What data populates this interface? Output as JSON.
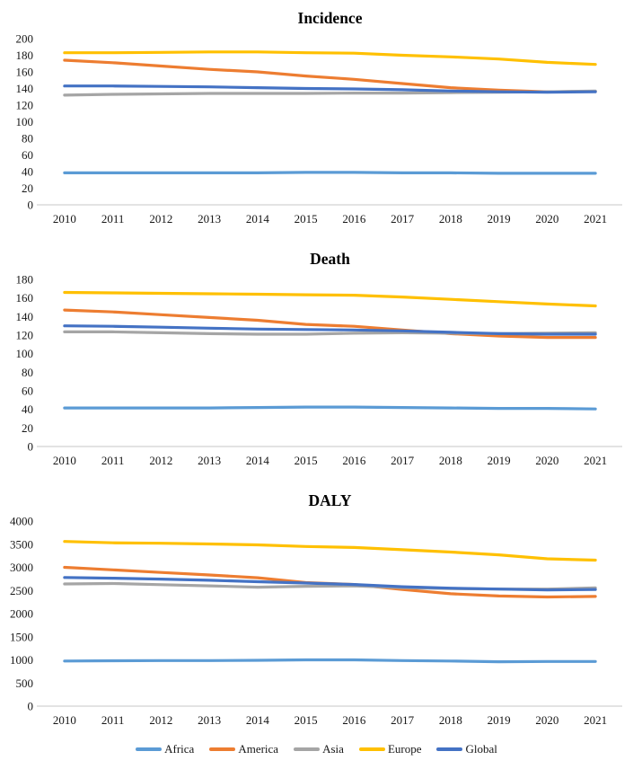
{
  "legend": {
    "items": [
      {
        "label": "Africa",
        "color": "#5B9BD5"
      },
      {
        "label": "America",
        "color": "#ED7D31"
      },
      {
        "label": "Asia",
        "color": "#A5A5A5"
      },
      {
        "label": "Europe",
        "color": "#FFC000"
      },
      {
        "label": "Global",
        "color": "#4472C4"
      }
    ]
  },
  "chart_data": [
    {
      "type": "line",
      "title": "Incidence",
      "x": [
        "2010",
        "2011",
        "2012",
        "2013",
        "2014",
        "2015",
        "2016",
        "2017",
        "2018",
        "2019",
        "2020",
        "2021"
      ],
      "ylim": [
        0,
        200
      ],
      "ytick_step": 20,
      "grid": false,
      "legend_position": "shared-bottom",
      "series": [
        {
          "name": "Africa",
          "color": "#5B9BD5",
          "values": [
            38.5,
            38.5,
            38.5,
            38.5,
            38.5,
            39,
            39,
            38.5,
            38.5,
            38,
            38,
            38
          ]
        },
        {
          "name": "America",
          "color": "#ED7D31",
          "values": [
            174,
            171,
            167,
            163,
            160,
            155,
            151,
            146,
            141,
            138,
            136,
            136.5
          ]
        },
        {
          "name": "Asia",
          "color": "#A5A5A5",
          "values": [
            132,
            133,
            133.5,
            134,
            134,
            134,
            134.5,
            134.5,
            135,
            135.5,
            136,
            137
          ]
        },
        {
          "name": "Europe",
          "color": "#FFC000",
          "values": [
            183,
            183,
            183.5,
            184,
            184,
            183,
            182.5,
            180,
            178,
            175.5,
            171.5,
            169
          ]
        },
        {
          "name": "Global",
          "color": "#4472C4",
          "values": [
            143,
            143,
            142.5,
            142,
            141,
            140,
            139.5,
            138.5,
            137,
            136,
            135.5,
            136
          ]
        }
      ]
    },
    {
      "type": "line",
      "title": "Death",
      "x": [
        "2010",
        "2011",
        "2012",
        "2013",
        "2014",
        "2015",
        "2016",
        "2017",
        "2018",
        "2019",
        "2020",
        "2021"
      ],
      "ylim": [
        0,
        180
      ],
      "ytick_step": 20,
      "grid": false,
      "legend_position": "shared-bottom",
      "series": [
        {
          "name": "Africa",
          "color": "#5B9BD5",
          "values": [
            41.5,
            41.5,
            41.5,
            41.5,
            42,
            42.5,
            42.5,
            42,
            41.5,
            41,
            41,
            40.5
          ]
        },
        {
          "name": "America",
          "color": "#ED7D31",
          "values": [
            147,
            145,
            142,
            139,
            136,
            131.5,
            129.5,
            125.5,
            121.5,
            119,
            117.5,
            117.5
          ]
        },
        {
          "name": "Asia",
          "color": "#A5A5A5",
          "values": [
            123.5,
            123.5,
            122.5,
            121.5,
            121,
            121,
            122,
            122.5,
            122,
            121.5,
            122,
            122.5
          ]
        },
        {
          "name": "Europe",
          "color": "#FFC000",
          "values": [
            166,
            165.5,
            165,
            164.5,
            164,
            163.5,
            163,
            161,
            158.5,
            156,
            153.5,
            151.5
          ]
        },
        {
          "name": "Global",
          "color": "#4472C4",
          "values": [
            130,
            129.5,
            128.5,
            127.5,
            126.5,
            126,
            125.5,
            124.5,
            123,
            121.5,
            121,
            121
          ]
        }
      ]
    },
    {
      "type": "line",
      "title": "DALY",
      "x": [
        "2010",
        "2011",
        "2012",
        "2013",
        "2014",
        "2015",
        "2016",
        "2017",
        "2018",
        "2019",
        "2020",
        "2021"
      ],
      "ylim": [
        0,
        4000
      ],
      "ytick_step": 500,
      "grid": false,
      "legend_position": "shared-bottom",
      "series": [
        {
          "name": "Africa",
          "color": "#5B9BD5",
          "values": [
            975,
            980,
            985,
            985,
            990,
            1000,
            1000,
            985,
            975,
            960,
            965,
            965
          ]
        },
        {
          "name": "America",
          "color": "#ED7D31",
          "values": [
            3000,
            2945,
            2890,
            2835,
            2775,
            2670,
            2630,
            2520,
            2430,
            2380,
            2360,
            2370
          ]
        },
        {
          "name": "Asia",
          "color": "#A5A5A5",
          "values": [
            2640,
            2650,
            2625,
            2600,
            2570,
            2590,
            2600,
            2560,
            2540,
            2530,
            2530,
            2555
          ]
        },
        {
          "name": "Europe",
          "color": "#FFC000",
          "values": [
            3560,
            3530,
            3520,
            3505,
            3485,
            3450,
            3430,
            3380,
            3330,
            3270,
            3185,
            3155
          ]
        },
        {
          "name": "Global",
          "color": "#4472C4",
          "values": [
            2780,
            2765,
            2745,
            2720,
            2690,
            2660,
            2630,
            2580,
            2550,
            2530,
            2510,
            2520
          ]
        }
      ]
    }
  ]
}
